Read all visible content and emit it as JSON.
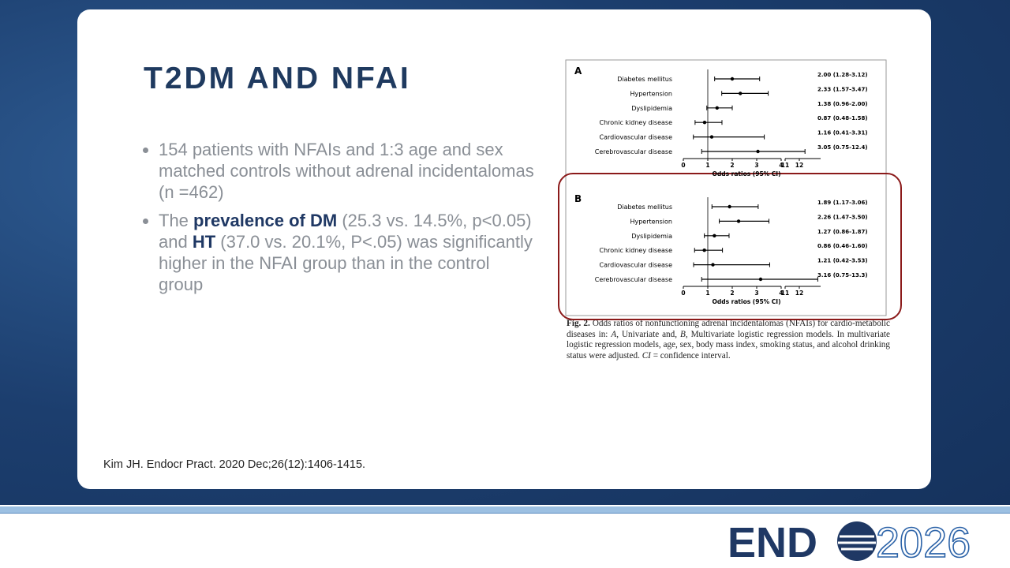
{
  "slide": {
    "title": "T2DM AND NFAI",
    "bullets": [
      [
        {
          "text": "154 patients with NFAIs and 1:3 age and sex matched controls without adrenal incidentalomas (n =462)"
        }
      ],
      [
        {
          "text": "The "
        },
        {
          "text": "prevalence of DM",
          "bold": true
        },
        {
          "text": " (25.3 vs. 14.5%, p<0.05) and "
        },
        {
          "text": "HT",
          "bold": true
        },
        {
          "text": " (37.0 vs. 20.1%, P<.05) was significantly higher in the NFAI group than in the control group"
        }
      ]
    ],
    "citation": "Kim JH. Endocr Pract. 2020 Dec;26(12):1406-1415.",
    "logo": {
      "left": "END",
      "right": "2026"
    }
  },
  "figure": {
    "type": "forest",
    "x_label": "Odds ratios (95% CI)",
    "xlim": [
      0,
      13.5
    ],
    "axis_break": [
      4,
      11
    ],
    "xticks": [
      0,
      1,
      2,
      3,
      4,
      11,
      12
    ],
    "categories": [
      "Diabetes mellitus",
      "Hypertension",
      "Dyslipidemia",
      "Chronic kidney disease",
      "Cardiovascular disease",
      "Cerebrovascular disease"
    ],
    "panels": [
      {
        "label": "A",
        "values": [
          2.0,
          2.33,
          1.38,
          0.87,
          1.16,
          3.05
        ],
        "lower": [
          1.28,
          1.57,
          0.96,
          0.48,
          0.41,
          0.75
        ],
        "upper": [
          3.12,
          3.47,
          2.0,
          1.58,
          3.31,
          12.4
        ],
        "value_labels": [
          "2.00 (1.28-3.12)",
          "2.33 (1.57-3.47)",
          "1.38 (0.96-2.00)",
          "0.87 (0.48-1.58)",
          "1.16 (0.41-3.31)",
          "3.05 (0.75-12.4)"
        ]
      },
      {
        "label": "B",
        "values": [
          1.89,
          2.26,
          1.27,
          0.86,
          1.21,
          3.16
        ],
        "lower": [
          1.17,
          1.47,
          0.86,
          0.46,
          0.42,
          0.75
        ],
        "upper": [
          3.06,
          3.5,
          1.87,
          1.6,
          3.53,
          13.3
        ],
        "value_labels": [
          "1.89 (1.17-3.06)",
          "2.26 (1.47-3.50)",
          "1.27 (0.86-1.87)",
          "0.86 (0.46-1.60)",
          "1.21 (0.42-3.53)",
          "3.16 (0.75-13.3)"
        ]
      }
    ],
    "caption": [
      {
        "text": "Fig. 2.",
        "bold": true
      },
      {
        "text": " Odds ratios of nonfunctioning adrenal incidentalomas (NFAIs) for cardio-metabolic diseases in: "
      },
      {
        "text": "A",
        "italic": true
      },
      {
        "text": ", Univariate and, "
      },
      {
        "text": "B",
        "italic": true
      },
      {
        "text": ", Multivariate logistic regression models. In multivariate logistic regression models, age, sex, body mass index, smoking status, and alcohol drinking status were adjusted. "
      },
      {
        "text": "CI",
        "italic": true
      },
      {
        "text": " = confidence interval."
      }
    ]
  }
}
